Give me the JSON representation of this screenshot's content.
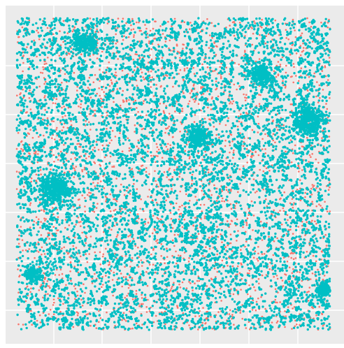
{
  "chart_data": {
    "type": "scatter",
    "title": "",
    "xlabel": "",
    "ylabel": "",
    "legend": "none",
    "grid": true,
    "xlim": [
      0,
      1
    ],
    "ylim": [
      0,
      1
    ],
    "panel_background": "#EBEBEB",
    "grid_color": "#FFFFFF",
    "series": [
      {
        "color": "#00BFC4",
        "point_count_approx": 14000,
        "clusters": [
          {
            "x": 0.22,
            "y": 0.92,
            "size": "medium"
          },
          {
            "x": 0.12,
            "y": 0.45,
            "size": "large"
          },
          {
            "x": 0.78,
            "y": 0.82,
            "size": "medium"
          },
          {
            "x": 0.93,
            "y": 0.67,
            "size": "large"
          },
          {
            "x": 0.58,
            "y": 0.62,
            "size": "medium"
          },
          {
            "x": 0.98,
            "y": 0.13,
            "size": "small"
          },
          {
            "x": 0.05,
            "y": 0.18,
            "size": "small"
          }
        ]
      },
      {
        "color": "#F8766D",
        "point_count_approx": 5000
      }
    ]
  }
}
